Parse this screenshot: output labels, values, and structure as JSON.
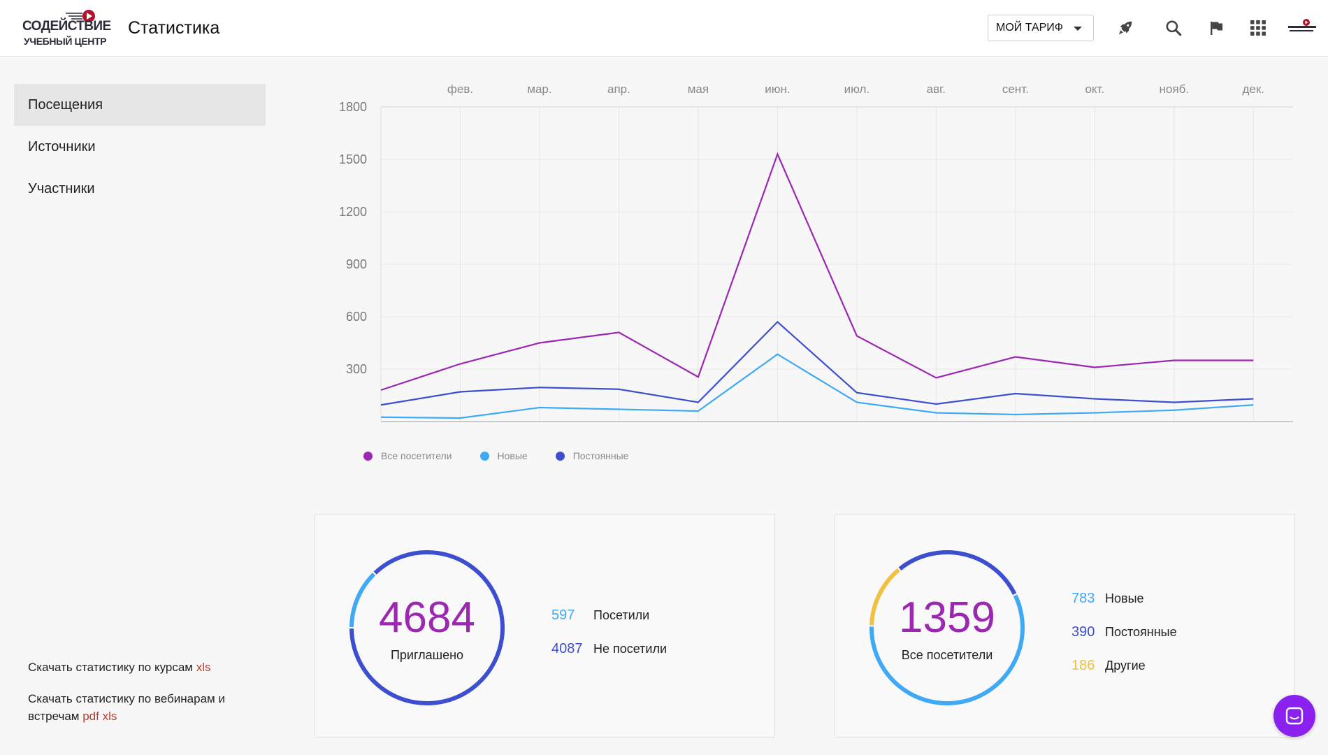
{
  "header": {
    "logo_line1": "СОДЕЙСТВИЕ",
    "logo_line2": "УЧЕБНЫЙ ЦЕНТР",
    "title": "Статистика",
    "tariff_label": "МОЙ ТАРИФ",
    "icons": [
      "rocket-icon",
      "search-icon",
      "flag-icon",
      "apps-grid-icon",
      "avatar"
    ]
  },
  "sidebar": {
    "items": [
      {
        "label": "Посещения",
        "active": true
      },
      {
        "label": "Источники",
        "active": false
      },
      {
        "label": "Участники",
        "active": false
      }
    ],
    "download_courses_text": "Скачать статистику по курсам",
    "download_courses_xls": "xls",
    "download_webinars_text": "Скачать статистику по вебинарам и встречам",
    "download_webinars_pdf": "pdf",
    "download_webinars_xls": "xls"
  },
  "colors": {
    "all": "#9c27b0",
    "new": "#3fa9f5",
    "regular": "#3d4fcf",
    "other": "#f0c040",
    "link": "#c0392b"
  },
  "chart_data": {
    "type": "line",
    "categories": [
      "",
      "фев.",
      "мар.",
      "апр.",
      "мая",
      "июн.",
      "июл.",
      "авг.",
      "сент.",
      "окт.",
      "нояб.",
      "дек."
    ],
    "x_tick_labels": [
      "фев.",
      "мар.",
      "апр.",
      "мая",
      "июн.",
      "июл.",
      "авг.",
      "сент.",
      "окт.",
      "нояб.",
      "дек."
    ],
    "y_ticks": [
      300,
      600,
      900,
      1200,
      1500,
      1800
    ],
    "ylim": [
      0,
      1800
    ],
    "grid": true,
    "legend_position": "bottom-left",
    "series": [
      {
        "name": "Все посетители",
        "color": "#9c27b0",
        "values": [
          180,
          330,
          450,
          510,
          255,
          1530,
          490,
          250,
          370,
          310,
          350,
          350
        ]
      },
      {
        "name": "Новые",
        "color": "#3fa9f5",
        "values": [
          25,
          20,
          80,
          70,
          60,
          385,
          110,
          50,
          40,
          50,
          65,
          95
        ]
      },
      {
        "name": "Постоянные",
        "color": "#3d4fcf",
        "values": [
          95,
          170,
          195,
          185,
          110,
          570,
          165,
          100,
          160,
          130,
          110,
          130
        ]
      }
    ]
  },
  "card_invited": {
    "total": "4684",
    "total_label": "Приглашено",
    "rows": [
      {
        "value": "597",
        "label": "Посетили",
        "color": "#3fa9f5",
        "share": 0.1275
      },
      {
        "value": "4087",
        "label": "Не посетили",
        "color": "#3d4fcf",
        "share": 0.8725
      }
    ]
  },
  "card_visitors": {
    "total": "1359",
    "total_label": "Все посетители",
    "rows": [
      {
        "value": "783",
        "label": "Новые",
        "color": "#3fa9f5",
        "share": 0.5762
      },
      {
        "value": "390",
        "label": "Постоянные",
        "color": "#3d4fcf",
        "share": 0.287
      },
      {
        "value": "186",
        "label": "Другие",
        "color": "#f0c040",
        "share": 0.1369
      }
    ]
  }
}
